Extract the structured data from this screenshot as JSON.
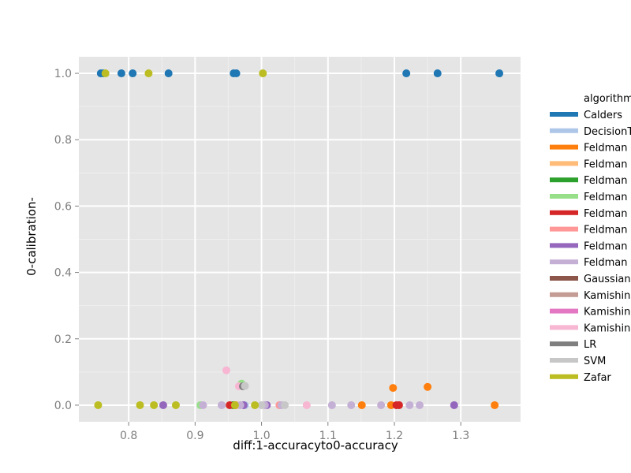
{
  "chart_data": {
    "type": "scatter",
    "xlabel": "diff:1-accuracyto0-accuracy",
    "ylabel": "0-calibration-",
    "xlim": [
      0.725,
      1.39
    ],
    "ylim": [
      -0.05,
      1.05
    ],
    "xticks": [
      0.8,
      0.9,
      1.0,
      1.1,
      1.2,
      1.3
    ],
    "xtick_labels": [
      "0.8",
      "0.9",
      "1.0",
      "1.1",
      "1.2",
      "1.3"
    ],
    "yticks": [
      0.0,
      0.2,
      0.4,
      0.6,
      0.8,
      1.0
    ],
    "ytick_labels": [
      "0.0",
      "0.2",
      "0.4",
      "0.6",
      "0.8",
      "1.0"
    ],
    "grid": true,
    "legend": {
      "title": "algorithm",
      "placement": "right",
      "entries": [
        {
          "label": "Calders",
          "color": "#1f77b4"
        },
        {
          "label": "DecisionT",
          "color": "#aec7e8"
        },
        {
          "label": "Feldman",
          "color": "#ff7f0e"
        },
        {
          "label": "Feldman",
          "color": "#ffbb78"
        },
        {
          "label": "Feldman",
          "color": "#2ca02c"
        },
        {
          "label": "Feldman",
          "color": "#98df8a"
        },
        {
          "label": "Feldman",
          "color": "#d62728"
        },
        {
          "label": "Feldman",
          "color": "#ff9896"
        },
        {
          "label": "Feldman",
          "color": "#9467bd"
        },
        {
          "label": "Feldman",
          "color": "#c5b0d5"
        },
        {
          "label": "Gaussian",
          "color": "#8c564b"
        },
        {
          "label": "Kamishin",
          "color": "#c49c94"
        },
        {
          "label": "Kamishin",
          "color": "#e377c2"
        },
        {
          "label": "Kamishin",
          "color": "#f7b6d2"
        },
        {
          "label": "LR",
          "color": "#7f7f7f"
        },
        {
          "label": "SVM",
          "color": "#c7c7c7"
        },
        {
          "label": "Zafar",
          "color": "#bcbd22"
        }
      ]
    },
    "series": [
      {
        "color": "#1f77b4",
        "points": [
          [
            0.758,
            1.0
          ],
          [
            0.762,
            1.0
          ],
          [
            0.789,
            1.0
          ],
          [
            0.806,
            1.0
          ],
          [
            0.86,
            1.0
          ],
          [
            0.958,
            1.0
          ],
          [
            0.962,
            1.0
          ],
          [
            1.218,
            1.0
          ],
          [
            1.265,
            1.0
          ],
          [
            1.358,
            1.0
          ]
        ]
      },
      {
        "color": "#aec7e8",
        "points": [
          [
            0.94,
            0.0
          ],
          [
            0.975,
            0.0
          ]
        ]
      },
      {
        "color": "#ff7f0e",
        "points": [
          [
            1.151,
            0.0
          ],
          [
            1.195,
            0.0
          ],
          [
            1.198,
            0.052
          ],
          [
            1.25,
            0.055
          ],
          [
            1.351,
            0.0
          ]
        ]
      },
      {
        "color": "#ffbb78",
        "points": [
          [
            0.962,
            0.0
          ]
        ]
      },
      {
        "color": "#2ca02c",
        "points": [
          [
            0.957,
            0.0
          ]
        ]
      },
      {
        "color": "#98df8a",
        "points": [
          [
            0.908,
            0.0
          ],
          [
            0.97,
            0.065
          ]
        ]
      },
      {
        "color": "#d62728",
        "points": [
          [
            0.952,
            0.0
          ],
          [
            0.96,
            0.0
          ],
          [
            1.203,
            0.0
          ],
          [
            1.207,
            0.0
          ]
        ]
      },
      {
        "color": "#ff9896",
        "points": [
          [
            1.027,
            0.0
          ]
        ]
      },
      {
        "color": "#9467bd",
        "points": [
          [
            0.852,
            0.0
          ],
          [
            0.973,
            0.0
          ],
          [
            1.008,
            0.0
          ],
          [
            1.29,
            0.0
          ]
        ]
      },
      {
        "color": "#c5b0d5",
        "points": [
          [
            0.912,
            0.0
          ],
          [
            0.94,
            0.0
          ],
          [
            0.968,
            0.0
          ],
          [
            1.005,
            0.0
          ],
          [
            1.03,
            0.0
          ],
          [
            1.106,
            0.0
          ],
          [
            1.135,
            0.0
          ],
          [
            1.18,
            0.0
          ],
          [
            1.223,
            0.0
          ],
          [
            1.238,
            0.0
          ]
        ]
      },
      {
        "color": "#8c564b",
        "points": []
      },
      {
        "color": "#c49c94",
        "points": []
      },
      {
        "color": "#e377c2",
        "points": []
      },
      {
        "color": "#f7b6d2",
        "points": [
          [
            0.947,
            0.105
          ],
          [
            0.966,
            0.057
          ],
          [
            1.068,
            0.0
          ]
        ]
      },
      {
        "color": "#7f7f7f",
        "points": [
          [
            0.972,
            0.057
          ]
        ]
      },
      {
        "color": "#c7c7c7",
        "points": [
          [
            0.975,
            0.058
          ],
          [
            1.0,
            0.0
          ],
          [
            1.035,
            0.0
          ]
        ]
      },
      {
        "color": "#bcbd22",
        "points": [
          [
            0.754,
            0.0
          ],
          [
            0.765,
            1.0
          ],
          [
            0.817,
            0.0
          ],
          [
            0.83,
            1.0
          ],
          [
            0.838,
            0.0
          ],
          [
            0.871,
            0.0
          ],
          [
            0.96,
            0.0
          ],
          [
            0.99,
            0.0
          ],
          [
            1.002,
            1.0
          ]
        ]
      }
    ]
  }
}
